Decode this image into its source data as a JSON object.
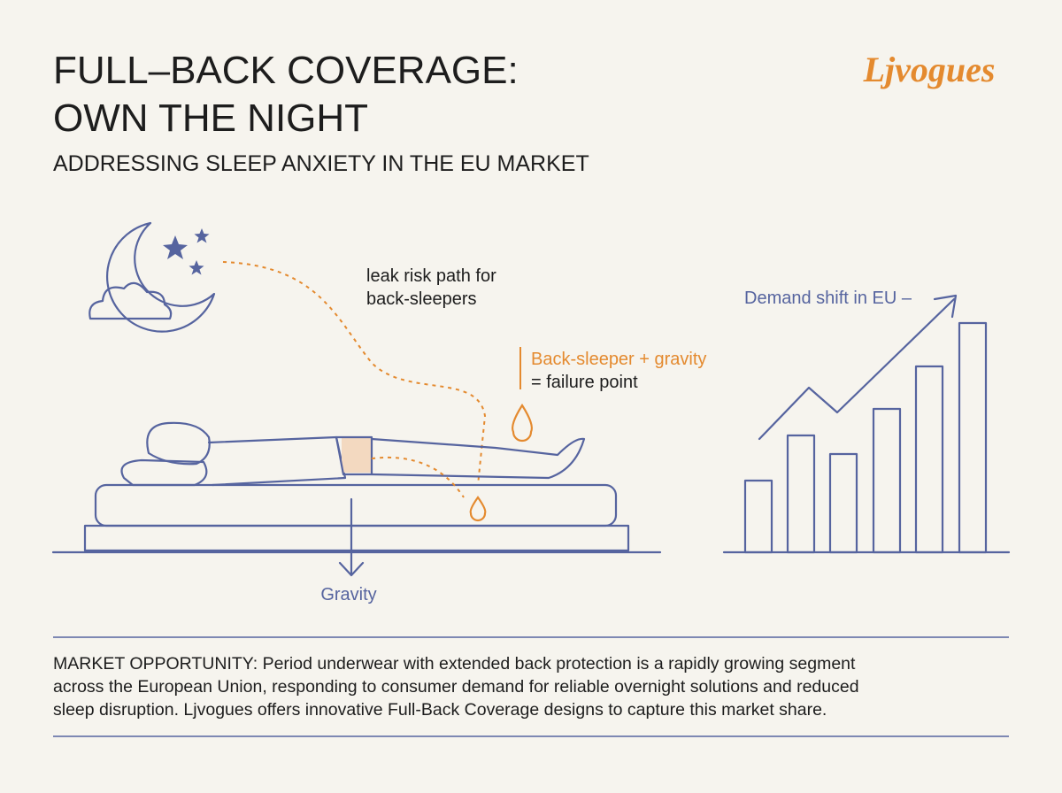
{
  "header": {
    "title_lines": [
      "FULL–BACK COVERAGE:",
      "OWN THE NIGHT"
    ],
    "subtitle": "ADDRESSING SLEEP ANXIETY IN THE EU MARKET",
    "logo": "Ljvogues"
  },
  "illustration": {
    "leak_path_label": [
      "leak risk path for",
      "back-sleepers"
    ],
    "failure_label": [
      "Back-sleeper + gravity",
      "= failure point"
    ],
    "gravity_label": "Gravity",
    "demand_label": "Demand shift in EU –"
  },
  "footer": {
    "lines": [
      "MARKET OPPORTUNITY: Period underwear with extended back protection is a rapidly growing segment",
      "across the European Union, responding to consumer demand for reliable overnight solutions and reduced",
      "sleep disruption. Ljvogues offers innovative Full-Back Coverage designs to capture this market share."
    ]
  }
}
